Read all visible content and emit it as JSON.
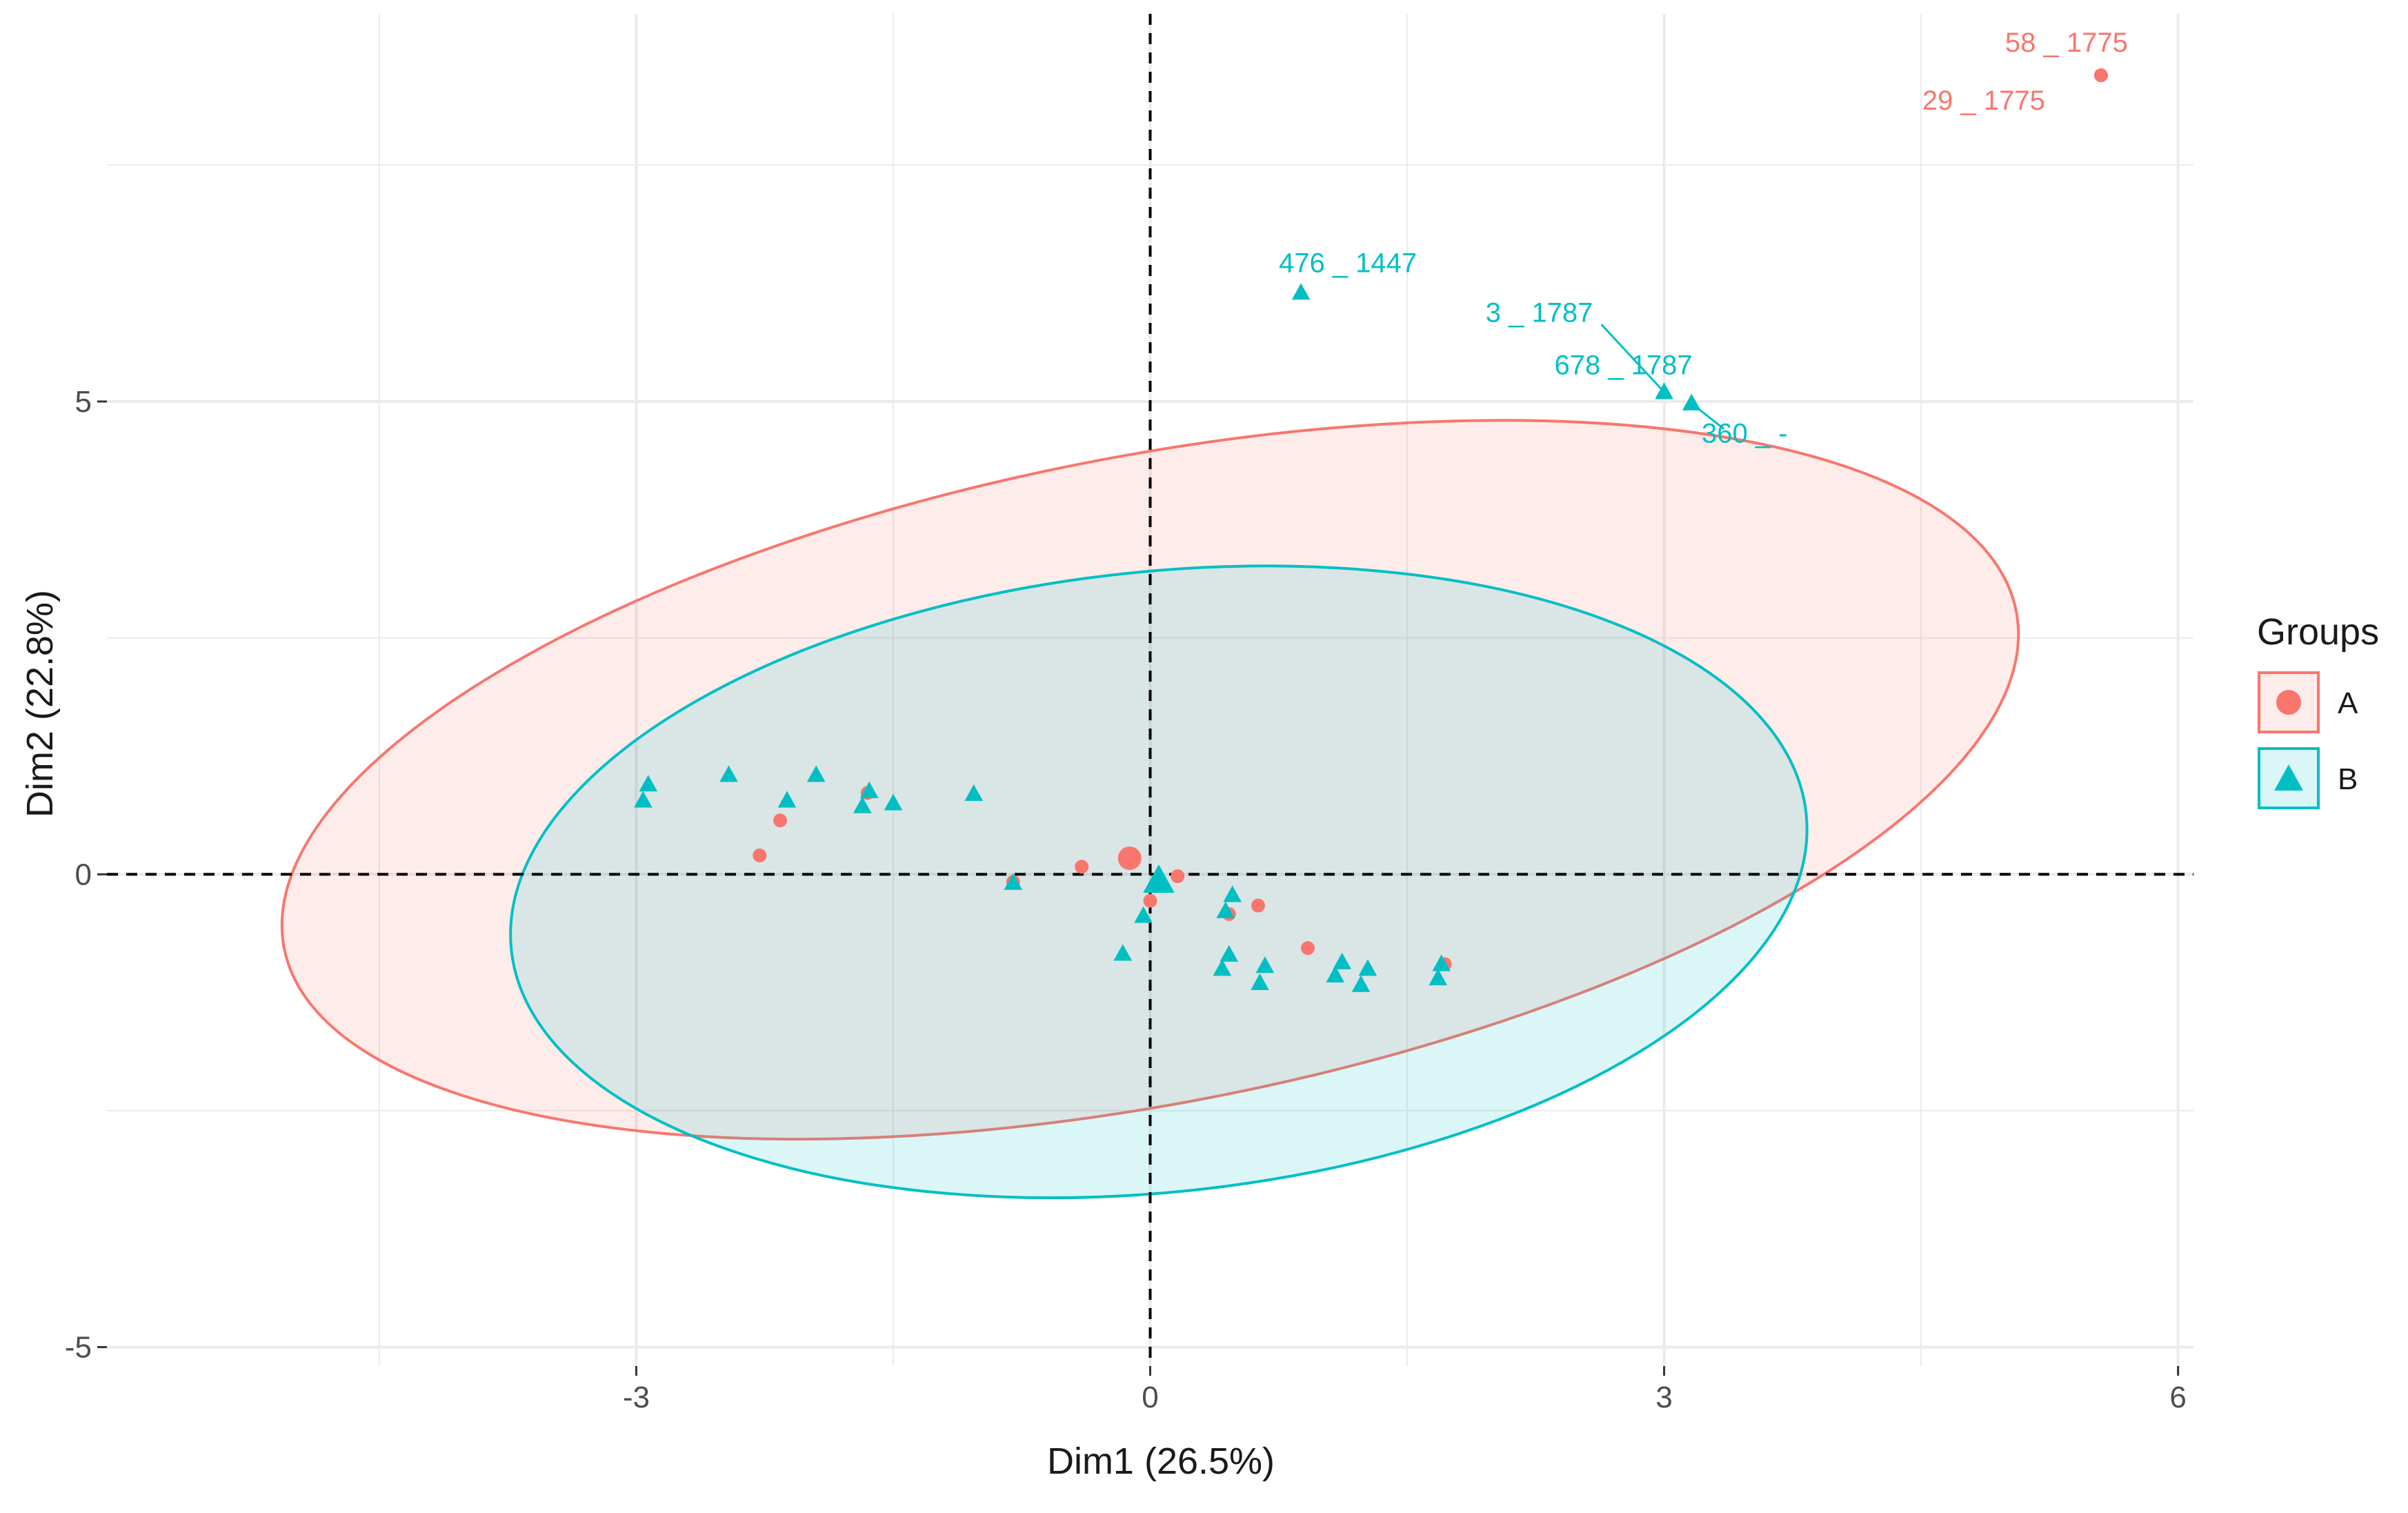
{
  "chart_data": {
    "type": "scatter",
    "title": "",
    "xlabel": "Dim1 (26.5%)",
    "ylabel": "Dim2 (22.8%)",
    "xlim": [
      -6.09,
      6.09
    ],
    "ylim": [
      -5.2,
      9.1
    ],
    "xticks": [
      -3,
      0,
      3,
      6
    ],
    "xtick_labels": [
      "-3",
      "0",
      "3",
      "6"
    ],
    "yticks": [
      -5,
      0,
      5
    ],
    "ytick_labels": [
      "-5",
      "0",
      "5"
    ],
    "grid": true,
    "reference_lines": [
      {
        "axis": "x",
        "value": 0,
        "style": "dashed"
      },
      {
        "axis": "y",
        "value": 0,
        "style": "dashed"
      }
    ],
    "colors": {
      "A": "#F8766D",
      "B": "#00BFC4",
      "grid": "#EBEBEB",
      "axis_text": "#4D4D4D",
      "title_text": "#1A1A1A"
    },
    "legend": {
      "title": "Groups",
      "position": "right",
      "entries": [
        {
          "name": "A",
          "shape": "circle"
        },
        {
          "name": "B",
          "shape": "triangle"
        }
      ]
    },
    "series": [
      {
        "name": "A",
        "shape": "circle",
        "points": [
          {
            "x": 5.55,
            "y": 8.45
          },
          {
            "x": 5.55,
            "y": 8.45
          },
          {
            "x": -2.28,
            "y": 0.2
          },
          {
            "x": -2.16,
            "y": 0.57
          },
          {
            "x": -1.65,
            "y": 0.86
          },
          {
            "x": -0.8,
            "y": -0.08
          },
          {
            "x": -0.4,
            "y": 0.08
          },
          {
            "x": 0.0,
            "y": -0.28
          },
          {
            "x": 0.16,
            "y": -0.02
          },
          {
            "x": 0.63,
            "y": -0.33
          },
          {
            "x": 0.92,
            "y": -0.78
          },
          {
            "x": 0.46,
            "y": -0.42
          },
          {
            "x": 1.72,
            "y": -0.95
          }
        ],
        "centroid": {
          "x": -0.12,
          "y": 0.17
        },
        "ellipse": {
          "cx": 0.0,
          "cy": 1.0,
          "rx": 5.15,
          "ry": 3.42,
          "angle_deg": -11
        },
        "labels": [
          {
            "text": "58 _ 1775",
            "x": 5.55,
            "y": 8.45
          },
          {
            "text": "29 _ 1775",
            "x": 5.55,
            "y": 8.45
          }
        ]
      },
      {
        "name": "B",
        "shape": "triangle",
        "points": [
          {
            "x": 0.88,
            "y": 6.15
          },
          {
            "x": 3.0,
            "y": 5.1
          },
          {
            "x": 3.16,
            "y": 4.98
          },
          {
            "x": 3.16,
            "y": 4.98
          },
          {
            "x": -2.93,
            "y": 0.95
          },
          {
            "x": -2.96,
            "y": 0.78
          },
          {
            "x": -2.46,
            "y": 1.05
          },
          {
            "x": -2.12,
            "y": 0.78
          },
          {
            "x": -1.95,
            "y": 1.05
          },
          {
            "x": -1.64,
            "y": 0.88
          },
          {
            "x": -1.68,
            "y": 0.72
          },
          {
            "x": -1.5,
            "y": 0.75
          },
          {
            "x": -1.03,
            "y": 0.85
          },
          {
            "x": -0.8,
            "y": -0.09
          },
          {
            "x": 0.05,
            "y": 0.0
          },
          {
            "x": -0.04,
            "y": -0.44
          },
          {
            "x": -0.16,
            "y": -0.84
          },
          {
            "x": 0.48,
            "y": -0.22
          },
          {
            "x": 0.44,
            "y": -0.39
          },
          {
            "x": 0.46,
            "y": -0.85
          },
          {
            "x": 0.42,
            "y": -1.0
          },
          {
            "x": 0.64,
            "y": -1.15
          },
          {
            "x": 0.67,
            "y": -0.97
          },
          {
            "x": 1.12,
            "y": -0.93
          },
          {
            "x": 1.08,
            "y": -1.07
          },
          {
            "x": 1.23,
            "y": -1.17
          },
          {
            "x": 1.27,
            "y": -1.0
          },
          {
            "x": 1.7,
            "y": -0.95
          },
          {
            "x": 1.68,
            "y": -1.1
          }
        ],
        "centroid": {
          "x": 0.05,
          "y": -0.07
        },
        "ellipse": {
          "cx": 0.05,
          "cy": -0.08,
          "rx": 3.8,
          "ry": 3.28,
          "angle_deg": -6
        },
        "labels": [
          {
            "text": "476 _ 1447",
            "x": 0.88,
            "y": 6.15
          },
          {
            "text": "3 _ 1787",
            "x": 3.0,
            "y": 5.1
          },
          {
            "text": "678 _ 1787",
            "x": 3.0,
            "y": 5.1
          },
          {
            "text": "360 _ -",
            "x": 3.16,
            "y": 4.98
          }
        ]
      }
    ]
  }
}
